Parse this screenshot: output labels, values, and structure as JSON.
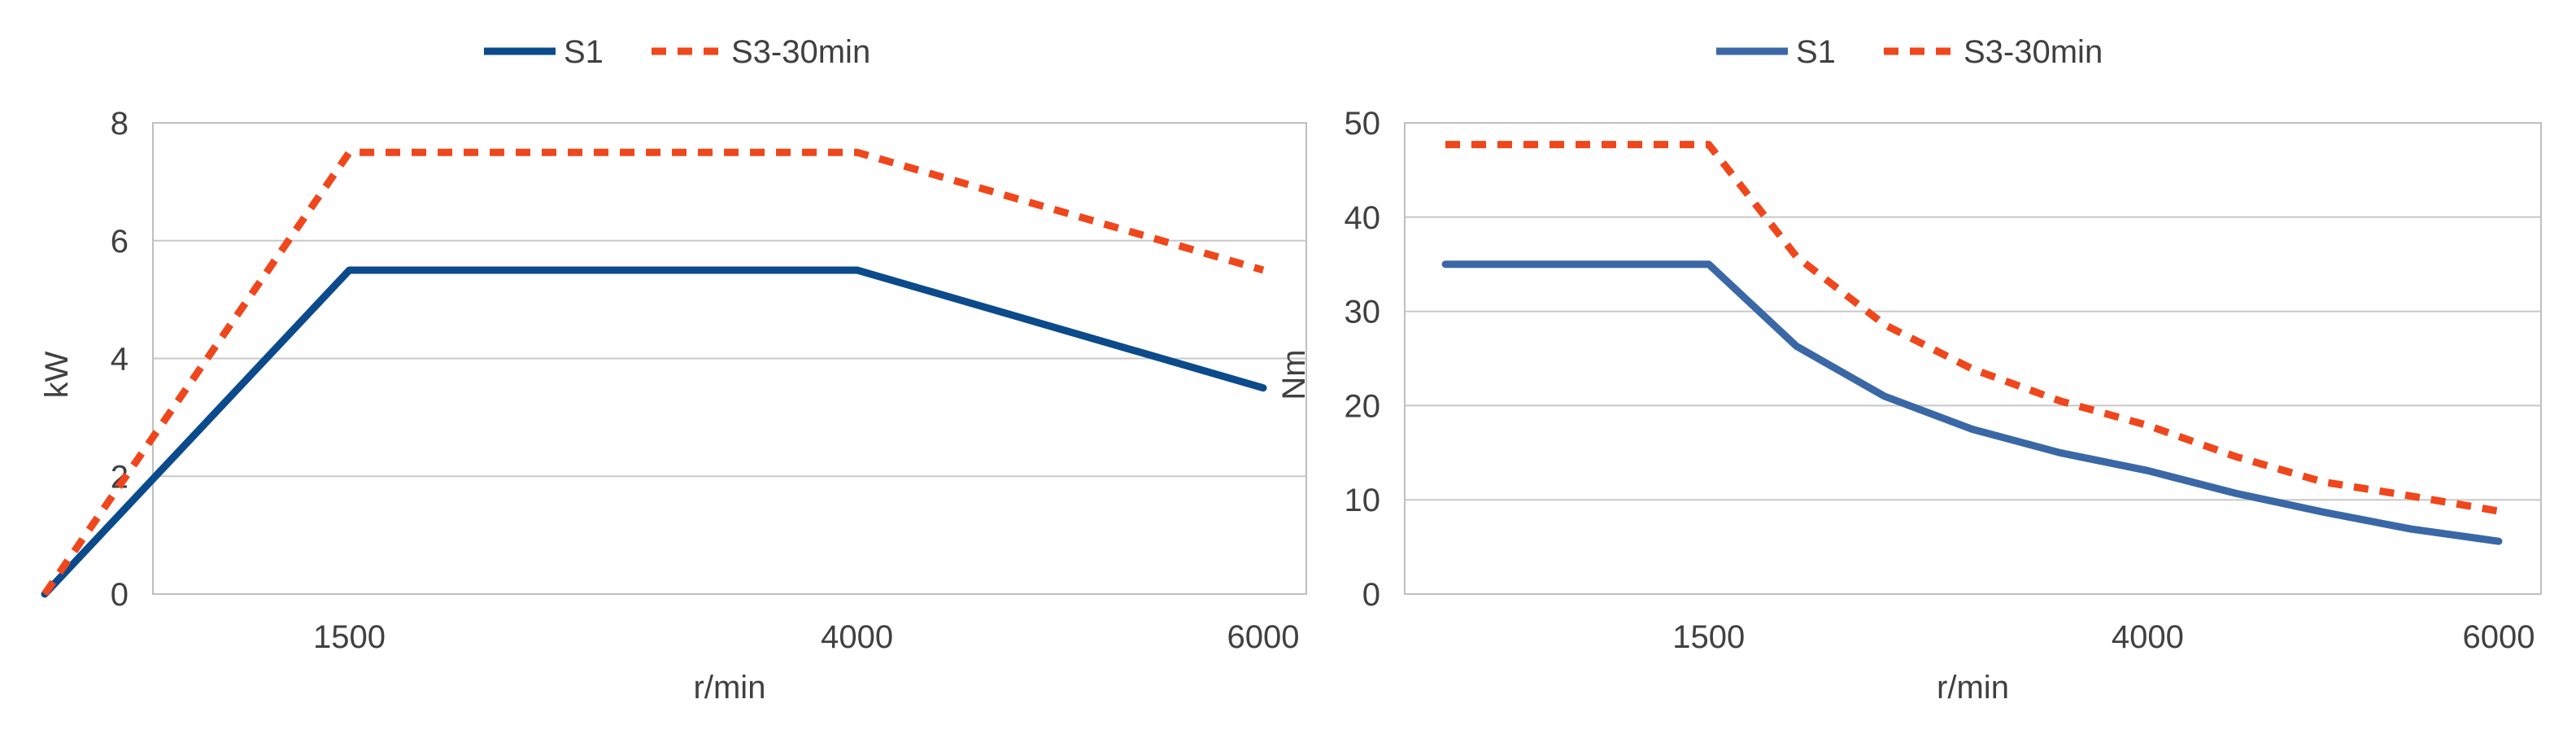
{
  "chart_data": [
    {
      "type": "line",
      "title": "",
      "xlabel": "r/min",
      "ylabel": "kW",
      "xlim": [
        0,
        6000
      ],
      "ylim": [
        0,
        8
      ],
      "xticks": [
        1500,
        4000,
        6000
      ],
      "yticks": [
        0,
        2,
        4,
        6,
        8
      ],
      "grid": true,
      "legend": "top-center",
      "series": [
        {
          "name": "S1",
          "color": "#0b4a8b",
          "style": "solid",
          "points": [
            [
              0,
              0
            ],
            [
              1500,
              5.5
            ],
            [
              4000,
              5.5
            ],
            [
              6000,
              3.5
            ]
          ]
        },
        {
          "name": "S3-30min",
          "color": "#f0461c",
          "style": "dotted",
          "points": [
            [
              0,
              0
            ],
            [
              1500,
              7.5
            ],
            [
              4000,
              7.5
            ],
            [
              6000,
              5.5
            ]
          ]
        }
      ]
    },
    {
      "type": "line",
      "title": "",
      "xlabel": "r/min",
      "ylabel": "Nm",
      "xlim": [
        0,
        6000
      ],
      "ylim": [
        0,
        50
      ],
      "xticks": [
        1500,
        4000,
        6000
      ],
      "yticks": [
        0,
        10,
        20,
        30,
        40,
        50
      ],
      "grid": true,
      "legend": "top-center",
      "series": [
        {
          "name": "S1",
          "color": "#3a68a6",
          "style": "solid",
          "points": [
            [
              0,
              35
            ],
            [
              1500,
              35
            ],
            [
              2000,
              26.3
            ],
            [
              2500,
              21
            ],
            [
              3000,
              17.5
            ],
            [
              3500,
              15
            ],
            [
              4000,
              13.1
            ],
            [
              4500,
              10.7
            ],
            [
              5000,
              8.7
            ],
            [
              5500,
              6.9
            ],
            [
              6000,
              5.6
            ]
          ]
        },
        {
          "name": "S3-30min",
          "color": "#f0461c",
          "style": "dotted",
          "points": [
            [
              0,
              47.7
            ],
            [
              1500,
              47.7
            ],
            [
              2000,
              35.8
            ],
            [
              2500,
              28.6
            ],
            [
              3000,
              23.9
            ],
            [
              3500,
              20.5
            ],
            [
              4000,
              17.9
            ],
            [
              4500,
              14.6
            ],
            [
              5000,
              11.9
            ],
            [
              5500,
              10.4
            ],
            [
              6000,
              8.8
            ]
          ]
        }
      ]
    }
  ]
}
